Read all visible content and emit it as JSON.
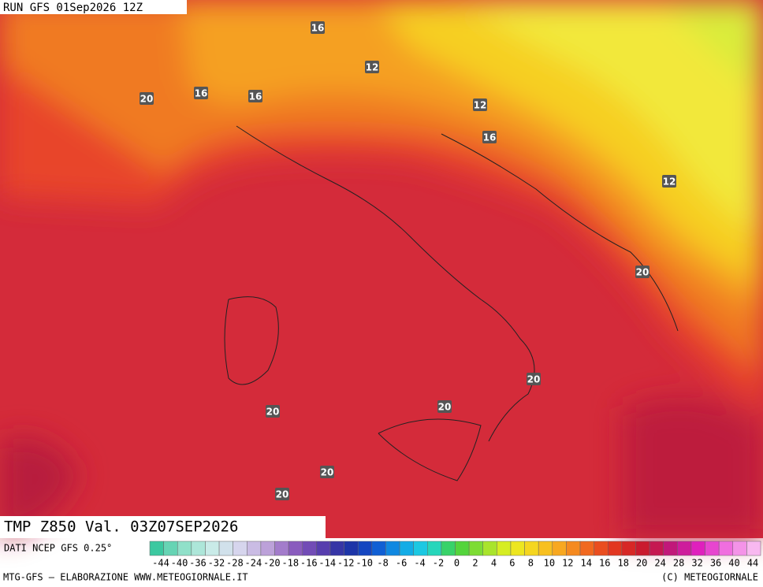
{
  "header": "RUN GFS 01Sep2026 12Z",
  "contour_labels": [
    16,
    12,
    20,
    16,
    16,
    12,
    16,
    12,
    20,
    20,
    20,
    20,
    20,
    20
  ],
  "map_title": "TMP Z850 Val. 03Z07SEP2026",
  "source": "DATI NCEP GFS 0.25°",
  "scale_labels": [
    "-44",
    "-40",
    "-36",
    "-32",
    "-28",
    "-24",
    "-20",
    "-18",
    "-16",
    "-14",
    "-12",
    "-10",
    "-8",
    "-6",
    "-4",
    "-2",
    "0",
    "2",
    "4",
    "6",
    "8",
    "10",
    "12",
    "14",
    "16",
    "18",
    "20",
    "24",
    "28",
    "32",
    "36",
    "40",
    "44"
  ],
  "credit_left": "MTG-GFS — ELABORAZIONE WWW.METEOGIORNALE.IT",
  "credit_right": "(C) METEOGIORNALE"
}
